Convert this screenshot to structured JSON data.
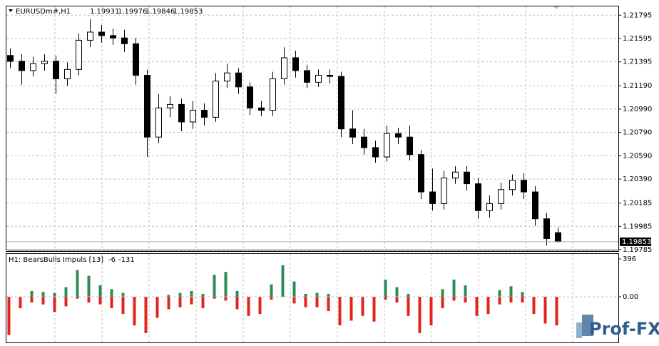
{
  "chart_data": {
    "type": "candlestick",
    "title": "EURUSDm#,H1",
    "open": [
      1.2145,
      1.214,
      1.2132,
      1.2138,
      1.214,
      1.2125,
      1.2133,
      1.2158,
      1.2165,
      1.2162,
      1.216,
      1.2155,
      1.2128,
      1.2075,
      1.21,
      1.2103,
      1.2088,
      1.2098,
      1.2092,
      1.2123,
      1.213,
      1.2118,
      1.21,
      1.2098,
      1.2125,
      1.2143,
      1.2132,
      1.2122,
      1.2128,
      1.2127,
      1.2082,
      1.2075,
      1.2066,
      1.2058,
      1.2078,
      1.2075,
      1.206,
      1.2028,
      1.2018,
      1.204,
      1.2045,
      1.2035,
      1.2012,
      1.2018,
      1.203,
      1.2038,
      1.2028,
      1.2005,
      1.19931
    ],
    "high": [
      1.2151,
      1.2146,
      1.2144,
      1.2146,
      1.2145,
      1.2139,
      1.2164,
      1.2176,
      1.2171,
      1.2168,
      1.2167,
      1.216,
      1.2133,
      1.2112,
      1.211,
      1.2108,
      1.2106,
      1.2104,
      1.213,
      1.2138,
      1.2134,
      1.2122,
      1.2106,
      1.2131,
      1.2152,
      1.2149,
      1.2137,
      1.2133,
      1.2133,
      1.2131,
      1.2098,
      1.2082,
      1.2072,
      1.2085,
      1.2083,
      1.2085,
      1.2064,
      1.2048,
      1.2046,
      1.205,
      1.205,
      1.204,
      1.2025,
      1.2036,
      1.2043,
      1.2044,
      1.2033,
      1.201,
      1.19976
    ],
    "low": [
      1.2134,
      1.212,
      1.2127,
      1.2132,
      1.2112,
      1.2119,
      1.2128,
      1.2152,
      1.2156,
      1.2154,
      1.2148,
      1.212,
      1.2058,
      1.207,
      1.2092,
      1.208,
      1.2082,
      1.2085,
      1.2088,
      1.2117,
      1.2112,
      1.2094,
      1.2093,
      1.2093,
      1.212,
      1.2126,
      1.2117,
      1.2118,
      1.2121,
      1.2075,
      1.2069,
      1.206,
      1.2053,
      1.2054,
      1.2069,
      1.2055,
      1.2022,
      1.2012,
      1.2013,
      1.2035,
      1.2029,
      1.2005,
      1.2006,
      1.2013,
      1.2025,
      1.2022,
      1.1999,
      1.1982,
      1.19846
    ],
    "close": [
      1.214,
      1.2132,
      1.2138,
      1.214,
      1.2125,
      1.2133,
      1.2158,
      1.2165,
      1.2162,
      1.216,
      1.2155,
      1.2128,
      1.2075,
      1.21,
      1.2103,
      1.2088,
      1.2098,
      1.2092,
      1.2123,
      1.213,
      1.2118,
      1.21,
      1.2098,
      1.2125,
      1.2143,
      1.2132,
      1.2122,
      1.2128,
      1.2127,
      1.2082,
      1.2075,
      1.2066,
      1.2058,
      1.2078,
      1.2075,
      1.206,
      1.2028,
      1.2018,
      1.204,
      1.2045,
      1.2035,
      1.2012,
      1.2018,
      1.203,
      1.2038,
      1.2028,
      1.2005,
      1.1988,
      1.19853
    ],
    "ylim": [
      1.19785,
      1.2187
    ],
    "yticks": [
      1.21795,
      1.21595,
      1.21395,
      {
        "value": 1.2119,
        "label": "1.21190"
      },
      {
        "value": 1.2099,
        "label": "1.20990"
      },
      {
        "value": 1.2079,
        "label": "1.20790"
      },
      {
        "value": 1.2059,
        "label": "1.20590"
      },
      {
        "value": 1.2039,
        "label": "1.20390"
      },
      1.20185,
      1.19985,
      1.19785
    ],
    "grid": true,
    "up_color": "#ffffff",
    "down_color": "#000000",
    "indicator": {
      "type": "bar",
      "name": "H1: BearsBulls Impuls [13]",
      "last_values": [
        -6,
        -131
      ],
      "series": [
        {
          "color": "#2e8b57",
          "values": [
            0,
            0,
            60,
            50,
            40,
            100,
            280,
            220,
            120,
            80,
            40,
            0,
            0,
            0,
            20,
            40,
            60,
            30,
            230,
            260,
            60,
            0,
            0,
            130,
            330,
            160,
            30,
            40,
            30,
            0,
            0,
            0,
            0,
            180,
            100,
            30,
            0,
            0,
            80,
            180,
            120,
            0,
            0,
            70,
            110,
            50,
            0,
            0,
            0
          ]
        },
        {
          "color": "#e3241b",
          "values": [
            -400,
            -120,
            -60,
            -80,
            -160,
            -100,
            -20,
            -60,
            -80,
            -120,
            -180,
            -300,
            -380,
            -220,
            -130,
            -110,
            -80,
            -120,
            -20,
            -40,
            -130,
            -200,
            -180,
            -30,
            0,
            -70,
            -110,
            -110,
            -150,
            -300,
            -250,
            -200,
            -260,
            -30,
            -60,
            -200,
            -380,
            -300,
            -120,
            -40,
            -60,
            -200,
            -180,
            -80,
            -60,
            -60,
            -180,
            -280,
            -300
          ]
        }
      ],
      "ylim": [
        -478,
        448
      ],
      "yticks": [
        396,
        {
          "value": 0,
          "label": "0.00"
        }
      ]
    },
    "watermark": "Prof-FX"
  }
}
